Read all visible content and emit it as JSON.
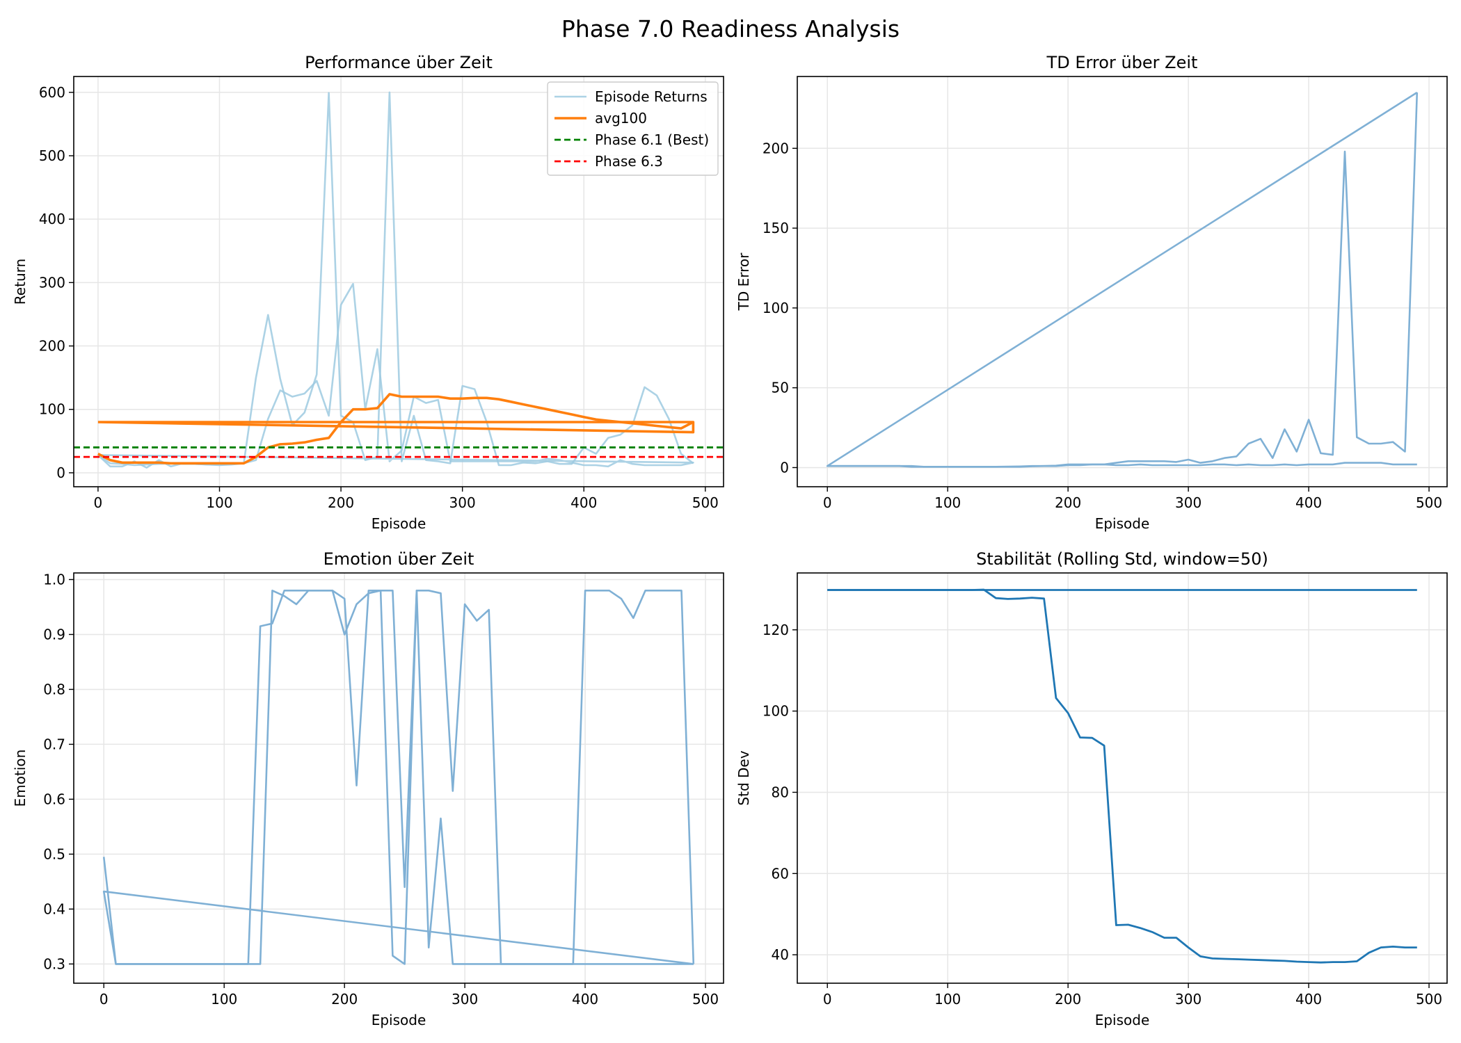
{
  "figure_title": "Phase 7.0 Readiness Analysis",
  "colors": {
    "light_blue": "#9ecae1",
    "steel_blue": "#7fb0d5",
    "dark_blue": "#1f77b4",
    "orange": "#ff7f0e",
    "green": "#008000",
    "red": "#ff0000",
    "grid": "#e6e6e6"
  },
  "chart_data": [
    {
      "type": "line",
      "title": "Performance über Zeit",
      "xlabel": "Episode",
      "ylabel": "Return",
      "xlim": [
        -20,
        515
      ],
      "ylim": [
        -22,
        625
      ],
      "xticks": [
        0,
        100,
        200,
        300,
        400,
        500
      ],
      "yticks": [
        0,
        100,
        200,
        300,
        400,
        500,
        600
      ],
      "grid": true,
      "legend": "top-right",
      "series": [
        {
          "name": "Episode Returns",
          "style": "light_blue",
          "x": [
            0,
            10,
            20,
            30,
            40,
            50,
            60,
            70,
            80,
            90,
            100,
            110,
            120,
            130,
            140,
            150,
            160,
            170,
            180,
            190,
            200,
            210,
            220,
            230,
            240,
            250,
            260,
            270,
            280,
            290,
            300,
            310,
            320,
            330,
            340,
            350,
            360,
            370,
            380,
            390,
            400,
            410,
            420,
            430,
            440,
            450,
            460,
            470,
            480,
            490
          ],
          "y": [
            28,
            10,
            10,
            18,
            8,
            20,
            10,
            15,
            14,
            13,
            12,
            13,
            15,
            150,
            249,
            148,
            75,
            95,
            155,
            599,
            90,
            80,
            20,
            25,
            600,
            18,
            90,
            20,
            18,
            15,
            137,
            132,
            80,
            12,
            12,
            16,
            15,
            18,
            14,
            14,
            40,
            30,
            55,
            60,
            75,
            135,
            122,
            85,
            30,
            15
          ]
        },
        {
          "name": "",
          "style": "light_blue",
          "x": [
            0,
            490,
            490,
            480,
            470,
            460,
            450,
            440,
            430,
            420,
            410,
            400,
            390,
            380,
            370,
            360,
            350,
            340,
            330,
            320,
            310,
            300,
            290,
            280,
            270,
            260,
            250,
            240,
            230,
            220,
            210,
            200,
            190,
            180,
            170,
            160,
            150,
            140,
            130,
            120,
            110,
            100,
            90,
            80,
            70,
            60,
            50,
            40,
            30,
            20,
            10,
            0
          ],
          "y": [
            28,
            16,
            16,
            12,
            12,
            12,
            12,
            14,
            20,
            10,
            12,
            12,
            16,
            20,
            22,
            18,
            18,
            18,
            18,
            18,
            18,
            18,
            18,
            115,
            110,
            120,
            35,
            18,
            195,
            100,
            298,
            265,
            90,
            145,
            125,
            120,
            130,
            85,
            20,
            15,
            14,
            13,
            13,
            14,
            14,
            15,
            14,
            13,
            12,
            14,
            15,
            28
          ]
        },
        {
          "name": "avg100",
          "style": "orange",
          "x": [
            0,
            10,
            20,
            30,
            40,
            50,
            60,
            70,
            80,
            90,
            100,
            110,
            120,
            130,
            140,
            150,
            160,
            170,
            180,
            190,
            200,
            210,
            220,
            230,
            240,
            250,
            260,
            270,
            280,
            290,
            300,
            310,
            320,
            330,
            340,
            350,
            360,
            370,
            380,
            390,
            400,
            410,
            420,
            430,
            440,
            450,
            460,
            470,
            480,
            490
          ],
          "y": [
            30,
            20,
            16,
            16,
            16,
            16,
            15,
            15,
            15,
            15,
            15,
            15,
            15,
            25,
            40,
            45,
            46,
            48,
            52,
            55,
            80,
            100,
            100,
            102,
            124,
            120,
            120,
            120,
            120,
            117,
            117,
            118,
            118,
            116,
            112,
            108,
            104,
            100,
            96,
            92,
            88,
            84,
            82,
            80,
            78,
            76,
            74,
            72,
            70,
            80
          ]
        },
        {
          "name": "",
          "style": "orange",
          "x": [
            0,
            490,
            490,
            0
          ],
          "y": [
            80,
            80,
            64,
            80
          ]
        },
        {
          "name": "Phase 6.1 (Best)",
          "style": "green_dashed",
          "y": 40
        },
        {
          "name": "Phase 6.3",
          "style": "red_dashed",
          "y": 25
        }
      ]
    },
    {
      "type": "line",
      "title": "TD Error über Zeit",
      "xlabel": "Episode",
      "ylabel": "TD Error",
      "xlim": [
        -25,
        515
      ],
      "ylim": [
        -12,
        245
      ],
      "xticks": [
        0,
        100,
        200,
        300,
        400,
        500
      ],
      "yticks": [
        0,
        50,
        100,
        150,
        200
      ],
      "grid": true,
      "series": [
        {
          "name": "",
          "style": "steel_blue",
          "x": [
            0,
            10,
            20,
            30,
            40,
            50,
            60,
            70,
            80,
            90,
            100,
            110,
            120,
            130,
            140,
            150,
            160,
            170,
            180,
            190,
            200,
            210,
            220,
            230,
            240,
            250,
            260,
            270,
            280,
            290,
            300,
            310,
            320,
            330,
            340,
            350,
            360,
            370,
            380,
            390,
            400,
            410,
            420,
            430,
            440,
            450,
            460,
            470,
            480,
            490
          ],
          "y": [
            1,
            1,
            1,
            1,
            1,
            1,
            1,
            1,
            0.5,
            0.5,
            0.5,
            0.5,
            0.5,
            0.5,
            0.5,
            0.6,
            0.7,
            1,
            1,
            1.2,
            2,
            2,
            2,
            2,
            3,
            4,
            4,
            4,
            4,
            3.5,
            5,
            3,
            4,
            6,
            7,
            15,
            18,
            6,
            24,
            10,
            30,
            9,
            8,
            198,
            19,
            15,
            15,
            16,
            10,
            235
          ]
        },
        {
          "name": "",
          "style": "steel_blue",
          "x": [
            490,
            480,
            470,
            460,
            450,
            440,
            430,
            420,
            410,
            400,
            390,
            380,
            370,
            360,
            350,
            340,
            330,
            320,
            310,
            300,
            290,
            280,
            270,
            260,
            250,
            240,
            230,
            220,
            210,
            200,
            190,
            180,
            170,
            160,
            150,
            140,
            130,
            120,
            110,
            100,
            90,
            80,
            70,
            60,
            50,
            40,
            30,
            20,
            10,
            0,
            490
          ],
          "y": [
            2,
            2,
            2,
            3,
            3,
            3,
            3,
            2,
            2,
            2,
            1.5,
            2,
            1.5,
            1.5,
            2,
            1.5,
            2,
            2,
            1.5,
            1.5,
            1.5,
            1.5,
            1.5,
            2,
            1.5,
            1.5,
            2,
            2,
            1.5,
            1.5,
            1,
            1,
            0.8,
            0.5,
            0.5,
            0.5,
            0.5,
            0.5,
            0.5,
            0.5,
            0.5,
            0.5,
            0.5,
            1,
            1,
            1,
            1,
            1,
            1,
            1,
            235
          ]
        }
      ]
    },
    {
      "type": "line",
      "title": "Emotion über Zeit",
      "xlabel": "Episode",
      "ylabel": "Emotion",
      "xlim": [
        -25,
        515
      ],
      "ylim": [
        0.265,
        1.012
      ],
      "xticks": [
        0,
        100,
        200,
        300,
        400,
        500
      ],
      "yticks": [
        0.3,
        0.4,
        0.5,
        0.6,
        0.7,
        0.8,
        0.9,
        1.0
      ],
      "grid": true,
      "series": [
        {
          "name": "",
          "style": "steel_blue",
          "x": [
            0,
            10,
            20,
            30,
            40,
            50,
            60,
            70,
            80,
            90,
            100,
            110,
            120,
            130,
            140,
            150,
            160,
            170,
            180,
            190,
            200,
            210,
            220,
            230,
            240,
            250,
            260,
            270,
            280,
            290,
            300,
            310,
            320,
            330,
            340,
            350,
            360,
            370,
            380,
            390,
            400,
            410,
            420,
            430,
            440,
            450,
            460,
            470,
            480,
            490
          ],
          "y": [
            0.495,
            0.3,
            0.3,
            0.3,
            0.3,
            0.3,
            0.3,
            0.3,
            0.3,
            0.3,
            0.3,
            0.3,
            0.3,
            0.3,
            0.98,
            0.97,
            0.955,
            0.98,
            0.98,
            0.98,
            0.965,
            0.625,
            0.98,
            0.98,
            0.98,
            0.44,
            0.98,
            0.33,
            0.565,
            0.3,
            0.3,
            0.3,
            0.3,
            0.3,
            0.3,
            0.3,
            0.3,
            0.3,
            0.3,
            0.3,
            0.3,
            0.3,
            0.3,
            0.3,
            0.3,
            0.3,
            0.3,
            0.3,
            0.3,
            0.3
          ]
        },
        {
          "name": "",
          "style": "steel_blue",
          "x": [
            490,
            480,
            470,
            460,
            450,
            440,
            430,
            420,
            410,
            400,
            390,
            380,
            370,
            360,
            350,
            340,
            330,
            320,
            310,
            300,
            290,
            280,
            270,
            260,
            250,
            240,
            230,
            220,
            210,
            200,
            190,
            180,
            170,
            160,
            150,
            140,
            130,
            120,
            110,
            100,
            90,
            80,
            70,
            60,
            50,
            40,
            30,
            20,
            10,
            0,
            490
          ],
          "y": [
            0.3,
            0.98,
            0.98,
            0.98,
            0.98,
            0.93,
            0.965,
            0.98,
            0.98,
            0.98,
            0.3,
            0.3,
            0.3,
            0.3,
            0.3,
            0.3,
            0.3,
            0.945,
            0.925,
            0.955,
            0.615,
            0.975,
            0.98,
            0.98,
            0.3,
            0.315,
            0.98,
            0.975,
            0.955,
            0.9,
            0.98,
            0.98,
            0.98,
            0.98,
            0.98,
            0.92,
            0.915,
            0.3,
            0.3,
            0.3,
            0.3,
            0.3,
            0.3,
            0.3,
            0.3,
            0.3,
            0.3,
            0.3,
            0.3,
            0.432,
            0.3
          ]
        }
      ]
    },
    {
      "type": "line",
      "title": "Stabilität (Rolling Std, window=50)",
      "xlabel": "Episode",
      "ylabel": "Std Dev",
      "xlim": [
        -25,
        515
      ],
      "ylim": [
        33,
        134
      ],
      "xticks": [
        0,
        100,
        200,
        300,
        400,
        500
      ],
      "yticks": [
        40,
        60,
        80,
        100,
        120
      ],
      "grid": true,
      "series": [
        {
          "name": "",
          "style": "dark_blue",
          "x": [
            0,
            10,
            20,
            30,
            40,
            50,
            60,
            70,
            80,
            90,
            100,
            110,
            120,
            130,
            140,
            150,
            160,
            170,
            180,
            190,
            200,
            210,
            220,
            230,
            240,
            250,
            260,
            270,
            280,
            290,
            300,
            310,
            320,
            330,
            340,
            350,
            360,
            370,
            380,
            390,
            400,
            410,
            420,
            430,
            440,
            450,
            460,
            470,
            480,
            490
          ],
          "y": [
            129.8,
            129.8,
            129.8,
            129.8,
            129.8,
            129.8,
            129.8,
            129.8,
            129.8,
            129.8,
            129.8,
            129.8,
            129.8,
            129.9,
            127.8,
            127.6,
            127.7,
            127.9,
            127.7,
            103.2,
            99.5,
            93.5,
            93.4,
            91.5,
            47.3,
            47.4,
            46.6,
            45.6,
            44.2,
            44.2,
            41.8,
            39.6,
            39.1,
            39.0,
            38.9,
            38.8,
            38.7,
            38.6,
            38.5,
            38.3,
            38.2,
            38.1,
            38.2,
            38.2,
            38.4,
            40.5,
            41.8,
            42.0,
            41.8,
            41.8
          ]
        },
        {
          "name": "",
          "style": "dark_blue",
          "x": [
            490,
            0
          ],
          "y": [
            129.8,
            129.8
          ]
        }
      ]
    }
  ]
}
